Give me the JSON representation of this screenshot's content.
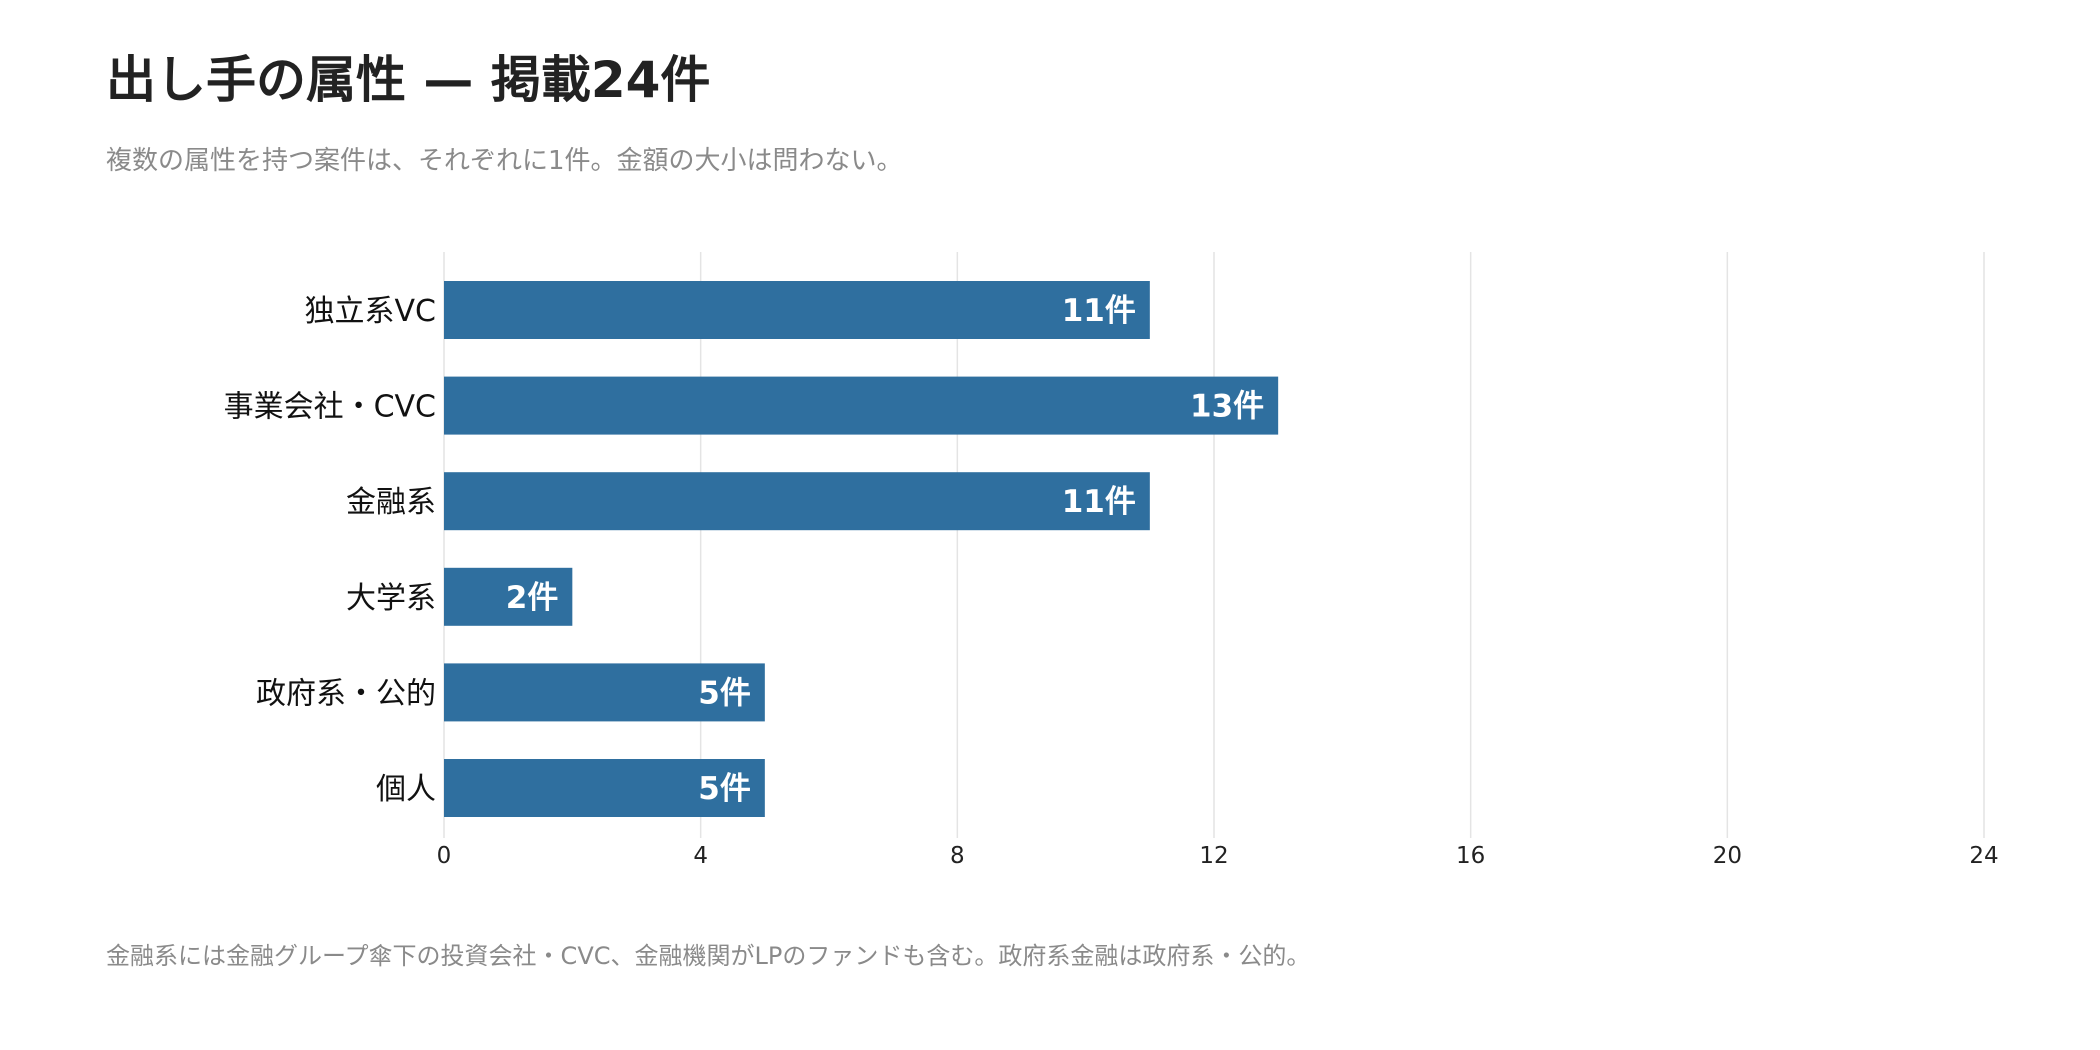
{
  "title": "出し手の属性 — 掲載24件",
  "subtitle": "複数の属性を持つ案件は、それぞれに1件。金額の大小は問わない。",
  "footnote": "金融系には金融グループ傘下の投資会社・CVC、金融機関がLPのファンドも含む。政府系金融は政府系・公的。",
  "colors": {
    "bar": "#2f6f9f",
    "grid": "#e4e4e4",
    "bar_label": "#ffffff",
    "category_label": "#111111",
    "tick_label": "#222222"
  },
  "chart_data": {
    "type": "bar",
    "orientation": "horizontal",
    "categories": [
      "独立系VC",
      "事業会社・CVC",
      "金融系",
      "大学系",
      "政府系・公的",
      "個人"
    ],
    "values": [
      11,
      13,
      11,
      2,
      5,
      5
    ],
    "value_labels": [
      "11件",
      "13件",
      "11件",
      "2件",
      "5件",
      "5件"
    ],
    "xticks": [
      0,
      4,
      8,
      12,
      16,
      20,
      24
    ],
    "xlim": [
      0,
      24
    ],
    "grid": "vertical",
    "legend": "none"
  }
}
